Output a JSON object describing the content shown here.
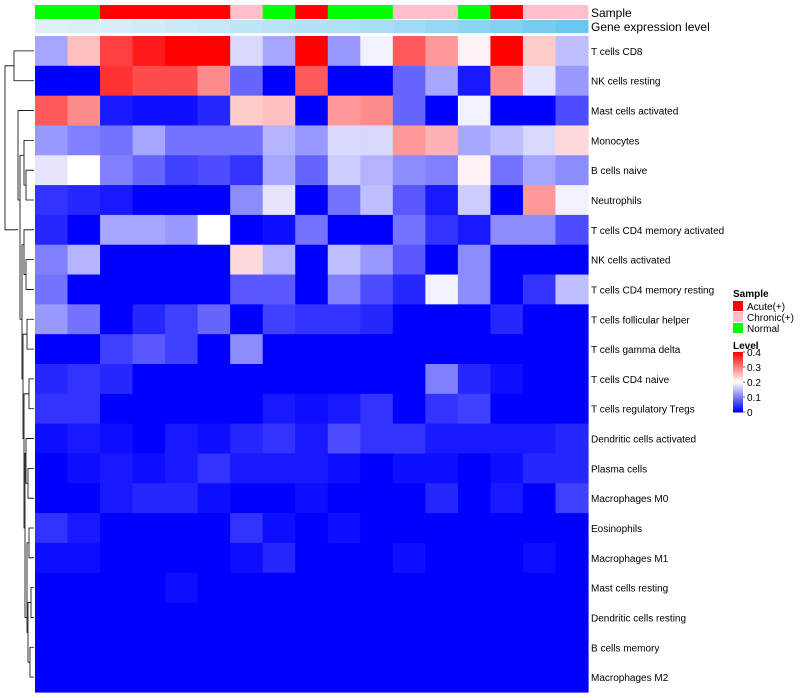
{
  "chart_data": {
    "type": "heatmap",
    "annotation_labels": [
      "Sample",
      "Gene expression level"
    ],
    "columns": [
      {
        "sample": "Normal",
        "expression_level": 0.05
      },
      {
        "sample": "Normal",
        "expression_level": 0.08
      },
      {
        "sample": "Acute(+)",
        "expression_level": 0.12
      },
      {
        "sample": "Acute(+)",
        "expression_level": 0.16
      },
      {
        "sample": "Acute(+)",
        "expression_level": 0.2
      },
      {
        "sample": "Acute(+)",
        "expression_level": 0.24
      },
      {
        "sample": "Chronic(+)",
        "expression_level": 0.28
      },
      {
        "sample": "Normal",
        "expression_level": 0.32
      },
      {
        "sample": "Acute(+)",
        "expression_level": 0.36
      },
      {
        "sample": "Normal",
        "expression_level": 0.4
      },
      {
        "sample": "Normal",
        "expression_level": 0.44
      },
      {
        "sample": "Chronic(+)",
        "expression_level": 0.5
      },
      {
        "sample": "Chronic(+)",
        "expression_level": 0.56
      },
      {
        "sample": "Normal",
        "expression_level": 0.62
      },
      {
        "sample": "Acute(+)",
        "expression_level": 0.7
      },
      {
        "sample": "Chronic(+)",
        "expression_level": 0.78
      },
      {
        "sample": "Chronic(+)",
        "expression_level": 0.86
      }
    ],
    "rows": [
      "T cells CD8",
      "NK cells resting",
      "Mast cells activated",
      "Monocytes",
      "B cells naive",
      "Neutrophils",
      "T cells CD4 memory activated",
      "NK cells activated",
      "T cells CD4 memory resting",
      "T cells follicular helper",
      "T cells gamma delta",
      "T cells CD4 naive",
      "T cells regulatory  Tregs",
      "Dendritic cells activated",
      "Plasma cells",
      "Macrophages M0",
      "Eosinophils",
      "Macrophages M1",
      "Mast cells resting",
      "Dendritic cells resting",
      "B cells memory",
      "Macrophages M2"
    ],
    "values": [
      [
        0.13,
        0.25,
        0.35,
        0.38,
        0.4,
        0.4,
        0.17,
        0.13,
        0.4,
        0.12,
        0.19,
        0.33,
        0.28,
        0.21,
        0.4,
        0.24,
        0.15
      ],
      [
        0.0,
        0.0,
        0.36,
        0.34,
        0.34,
        0.29,
        0.08,
        0.0,
        0.33,
        0.0,
        0.0,
        0.08,
        0.13,
        0.02,
        0.29,
        0.18,
        0.12
      ],
      [
        0.33,
        0.29,
        0.02,
        0.01,
        0.01,
        0.03,
        0.24,
        0.25,
        0.0,
        0.28,
        0.29,
        0.08,
        0.0,
        0.19,
        0.0,
        0.0,
        0.06
      ],
      [
        0.12,
        0.1,
        0.09,
        0.13,
        0.09,
        0.09,
        0.09,
        0.14,
        0.12,
        0.17,
        0.17,
        0.28,
        0.26,
        0.13,
        0.15,
        0.17,
        0.23
      ],
      [
        0.18,
        0.2,
        0.1,
        0.08,
        0.05,
        0.06,
        0.04,
        0.13,
        0.08,
        0.16,
        0.14,
        0.11,
        0.1,
        0.21,
        0.09,
        0.13,
        0.11
      ],
      [
        0.04,
        0.03,
        0.02,
        0.0,
        0.0,
        0.0,
        0.11,
        0.18,
        0.0,
        0.09,
        0.15,
        0.07,
        0.02,
        0.16,
        0.0,
        0.28,
        0.19
      ],
      [
        0.03,
        0.0,
        0.13,
        0.13,
        0.12,
        0.2,
        0.0,
        0.01,
        0.09,
        0.0,
        0.0,
        0.09,
        0.04,
        0.02,
        0.11,
        0.11,
        0.06
      ],
      [
        0.1,
        0.14,
        0.0,
        0.0,
        0.0,
        0.0,
        0.23,
        0.14,
        0.0,
        0.15,
        0.12,
        0.07,
        0.0,
        0.11,
        0.0,
        0.0,
        0.0
      ],
      [
        0.09,
        0.0,
        0.0,
        0.0,
        0.0,
        0.0,
        0.07,
        0.07,
        0.0,
        0.1,
        0.06,
        0.03,
        0.19,
        0.11,
        0.0,
        0.04,
        0.15
      ],
      [
        0.12,
        0.09,
        0.0,
        0.03,
        0.05,
        0.08,
        0.0,
        0.05,
        0.04,
        0.04,
        0.03,
        0.0,
        0.0,
        0.0,
        0.03,
        0.0,
        0.0
      ],
      [
        0.0,
        0.0,
        0.05,
        0.07,
        0.05,
        0.0,
        0.11,
        0.0,
        0.0,
        0.0,
        0.0,
        0.0,
        0.0,
        0.0,
        0.0,
        0.0,
        0.0
      ],
      [
        0.03,
        0.04,
        0.03,
        0.0,
        0.0,
        0.0,
        0.0,
        0.0,
        0.0,
        0.0,
        0.0,
        0.0,
        0.1,
        0.03,
        0.01,
        0.0,
        0.0
      ],
      [
        0.04,
        0.04,
        0.0,
        0.0,
        0.0,
        0.0,
        0.0,
        0.02,
        0.01,
        0.02,
        0.04,
        0.0,
        0.04,
        0.05,
        0.0,
        0.0,
        0.0
      ],
      [
        0.01,
        0.02,
        0.01,
        0.0,
        0.02,
        0.01,
        0.03,
        0.04,
        0.02,
        0.06,
        0.04,
        0.04,
        0.02,
        0.02,
        0.02,
        0.02,
        0.03
      ],
      [
        0.0,
        0.01,
        0.02,
        0.01,
        0.02,
        0.04,
        0.02,
        0.02,
        0.02,
        0.01,
        0.0,
        0.01,
        0.01,
        0.0,
        0.01,
        0.03,
        0.03
      ],
      [
        0.0,
        0.0,
        0.02,
        0.03,
        0.03,
        0.01,
        0.0,
        0.0,
        0.01,
        0.0,
        0.0,
        0.0,
        0.03,
        0.0,
        0.02,
        0.0,
        0.05
      ],
      [
        0.04,
        0.02,
        0.0,
        0.0,
        0.0,
        0.0,
        0.04,
        0.01,
        0.0,
        0.01,
        0.0,
        0.0,
        0.0,
        0.0,
        0.0,
        0.0,
        0.0
      ],
      [
        0.01,
        0.01,
        0.0,
        0.0,
        0.0,
        0.0,
        0.01,
        0.03,
        0.0,
        0.0,
        0.0,
        0.01,
        0.0,
        0.0,
        0.0,
        0.01,
        0.0
      ],
      [
        0.0,
        0.0,
        0.0,
        0.0,
        0.01,
        0.0,
        0.0,
        0.0,
        0.0,
        0.0,
        0.0,
        0.0,
        0.0,
        0.0,
        0.0,
        0.0,
        0.0
      ],
      [
        0.0,
        0.0,
        0.0,
        0.0,
        0.0,
        0.0,
        0.0,
        0.0,
        0.0,
        0.0,
        0.0,
        0.0,
        0.0,
        0.0,
        0.0,
        0.0,
        0.0
      ],
      [
        0.0,
        0.0,
        0.0,
        0.0,
        0.0,
        0.0,
        0.0,
        0.0,
        0.0,
        0.0,
        0.0,
        0.0,
        0.0,
        0.0,
        0.0,
        0.0,
        0.0
      ],
      [
        0.0,
        0.0,
        0.0,
        0.0,
        0.0,
        0.0,
        0.0,
        0.0,
        0.0,
        0.0,
        0.0,
        0.0,
        0.0,
        0.0,
        0.0,
        0.0,
        0.0
      ]
    ],
    "color_scale": {
      "min": 0,
      "max": 0.4,
      "colors": [
        "#0000ff",
        "#ffffff",
        "#ff0000"
      ],
      "mid": 0.2
    },
    "expression_level_colors": {
      "low": "#e8f4fb",
      "high": "#56c1ee"
    },
    "sample_legend": {
      "title": "Sample",
      "entries": [
        {
          "label": "Acute(+)",
          "color": "#ff0000"
        },
        {
          "label": "Chronic(+)",
          "color": "#ffc0cb"
        },
        {
          "label": "Normal",
          "color": "#00ff00"
        }
      ]
    },
    "level_legend": {
      "title": "Level",
      "ticks": [
        {
          "value": 0.4,
          "label": "0.4"
        },
        {
          "value": 0.3,
          "label": "0.3"
        },
        {
          "value": 0.2,
          "label": "0.2"
        },
        {
          "value": 0.1,
          "label": "0.1"
        },
        {
          "value": 0,
          "label": "0"
        }
      ]
    },
    "row_dendrogram": true,
    "legend_position": "right"
  }
}
